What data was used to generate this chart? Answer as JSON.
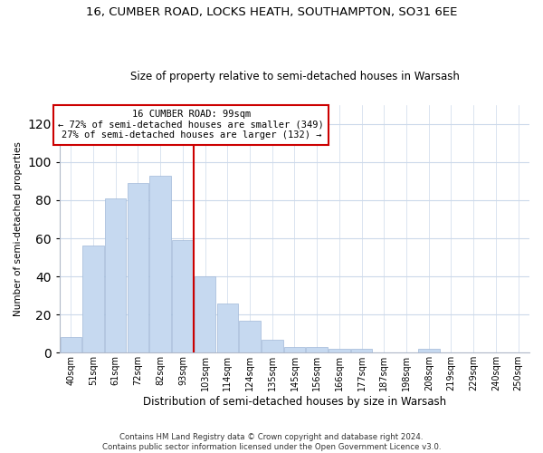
{
  "title": "16, CUMBER ROAD, LOCKS HEATH, SOUTHAMPTON, SO31 6EE",
  "subtitle": "Size of property relative to semi-detached houses in Warsash",
  "xlabel": "Distribution of semi-detached houses by size in Warsash",
  "ylabel": "Number of semi-detached properties",
  "bar_labels": [
    "40sqm",
    "51sqm",
    "61sqm",
    "72sqm",
    "82sqm",
    "93sqm",
    "103sqm",
    "114sqm",
    "124sqm",
    "135sqm",
    "145sqm",
    "156sqm",
    "166sqm",
    "177sqm",
    "187sqm",
    "198sqm",
    "208sqm",
    "219sqm",
    "229sqm",
    "240sqm",
    "250sqm"
  ],
  "bar_values": [
    8,
    56,
    81,
    89,
    93,
    59,
    40,
    26,
    17,
    7,
    3,
    3,
    2,
    2,
    0,
    0,
    2,
    0,
    0,
    0,
    0
  ],
  "bar_color": "#c6d9f0",
  "vline_bar_index": 5,
  "vline_color": "#cc0000",
  "ylim": [
    0,
    130
  ],
  "yticks": [
    0,
    20,
    40,
    60,
    80,
    100,
    120
  ],
  "annotation_title": "16 CUMBER ROAD: 99sqm",
  "annotation_line1": "← 72% of semi-detached houses are smaller (349)",
  "annotation_line2": "27% of semi-detached houses are larger (132) →",
  "annotation_box_color": "#ffffff",
  "annotation_box_edge": "#cc0000",
  "footer1": "Contains HM Land Registry data © Crown copyright and database right 2024.",
  "footer2": "Contains public sector information licensed under the Open Government Licence v3.0.",
  "bg_color": "#ffffff",
  "grid_color": "#ccd9ea"
}
